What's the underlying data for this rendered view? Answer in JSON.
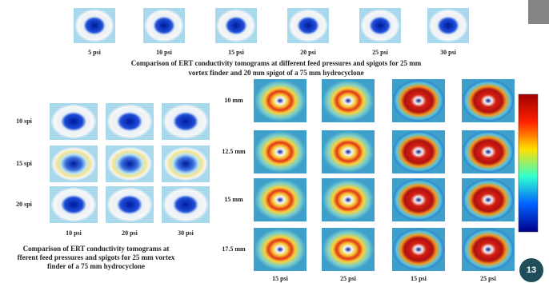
{
  "top_row": {
    "labels": [
      "5 psi",
      "10 psi",
      "15 psi",
      "20 psi",
      "25 psi",
      "30 psi"
    ],
    "caption": [
      "Comparison of ERT conductivity tomograms at different feed pressures and spigots for 25 mm",
      "vortex finder and 20 mm spigot of a 75 mm hydrocyclone"
    ]
  },
  "left_grid": {
    "row_labels": [
      "10 spi",
      "15 spi",
      "20 spi"
    ],
    "col_labels": [
      "10 psi",
      "20 psi",
      "30 psi"
    ],
    "caption": [
      "Comparison of ERT conductivity tomograms at",
      "fferent feed pressures and spigots for 25 mm vortex",
      "finder of a 75 mm hydrocyclone"
    ]
  },
  "right_grid": {
    "row_labels": [
      "10 mm",
      "12.5 mm",
      "15 mm",
      "17.5 mm"
    ],
    "col_labels": [
      "15 psi",
      "25 psi",
      "15 psi",
      "25 psi"
    ]
  },
  "page_number": "13"
}
